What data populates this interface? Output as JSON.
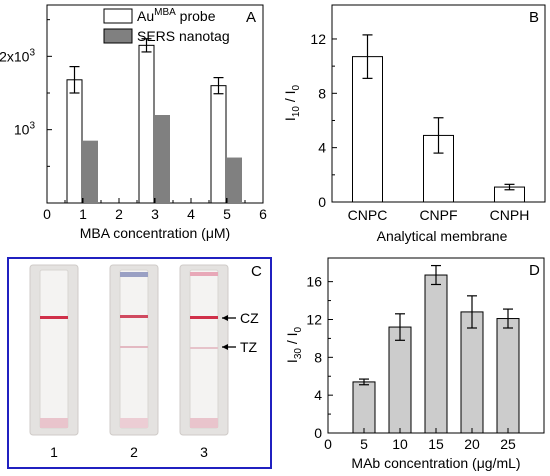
{
  "chart_data": [
    {
      "type": "bar",
      "panel_label": "A",
      "xlabel": "MBA concentration (μM)",
      "ylabel": "",
      "xlim": [
        0,
        6
      ],
      "ylim": [
        0,
        2700
      ],
      "x_ticks": [
        "0",
        "1",
        "2",
        "3",
        "4",
        "5",
        "6"
      ],
      "y_ticks": [
        {
          "value": 1000,
          "base": "10",
          "exp": "3"
        },
        {
          "value": 2000,
          "base": "2x10",
          "exp": "3"
        }
      ],
      "legend": [
        {
          "text_main": "Au",
          "text_sup": "MBA",
          "text_tail": " probe",
          "fill": "#ffffff"
        },
        {
          "text": "SERS nanotag",
          "fill": "#808080"
        }
      ],
      "series": [
        {
          "x": [
            1,
            3,
            5
          ],
          "values": [
            1680,
            2150,
            1600
          ],
          "errors": [
            180,
            90,
            110
          ],
          "color": "#ffffff"
        },
        {
          "x": [
            1,
            3,
            5
          ],
          "values": [
            850,
            1200,
            620
          ],
          "color": "#808080"
        }
      ]
    },
    {
      "type": "bar",
      "panel_label": "B",
      "xlabel": "Analytical membrane",
      "ylabel_main": "I",
      "ylabel_sub1": "10",
      "ylabel_mid": " / I",
      "ylabel_sub2": "0",
      "ylim": [
        0,
        14.5
      ],
      "y_ticks": [
        "0",
        "4",
        "8",
        "12"
      ],
      "categories": [
        "CNPC",
        "CNPF",
        "CNPH"
      ],
      "values": [
        10.7,
        4.9,
        1.1
      ],
      "errors": [
        1.6,
        1.3,
        0.2
      ],
      "color": "#ffffff"
    },
    {
      "type": "image",
      "panel_label": "C",
      "strip_labels": [
        "1",
        "2",
        "3"
      ],
      "zone_labels": {
        "cz": "CZ",
        "tz": "TZ"
      },
      "frame_color": "#2020c0",
      "line_color": "#d0304a"
    },
    {
      "type": "bar",
      "panel_label": "D",
      "xlabel": "MAb concentration (μg/mL)",
      "ylabel_main": "I",
      "ylabel_sub1": "30",
      "ylabel_mid": " / I",
      "ylabel_sub2": "0",
      "xlim": [
        0,
        30
      ],
      "ylim": [
        0,
        18.5
      ],
      "x_ticks": [
        "0",
        "5",
        "10",
        "15",
        "20",
        "25"
      ],
      "y_ticks": [
        "0",
        "4",
        "8",
        "12",
        "16"
      ],
      "x": [
        5,
        10,
        15,
        20,
        25
      ],
      "values": [
        5.4,
        11.2,
        16.7,
        12.8,
        12.1
      ],
      "errors": [
        0.3,
        1.4,
        1.0,
        1.7,
        1.0
      ],
      "color": "#cccccc"
    }
  ]
}
